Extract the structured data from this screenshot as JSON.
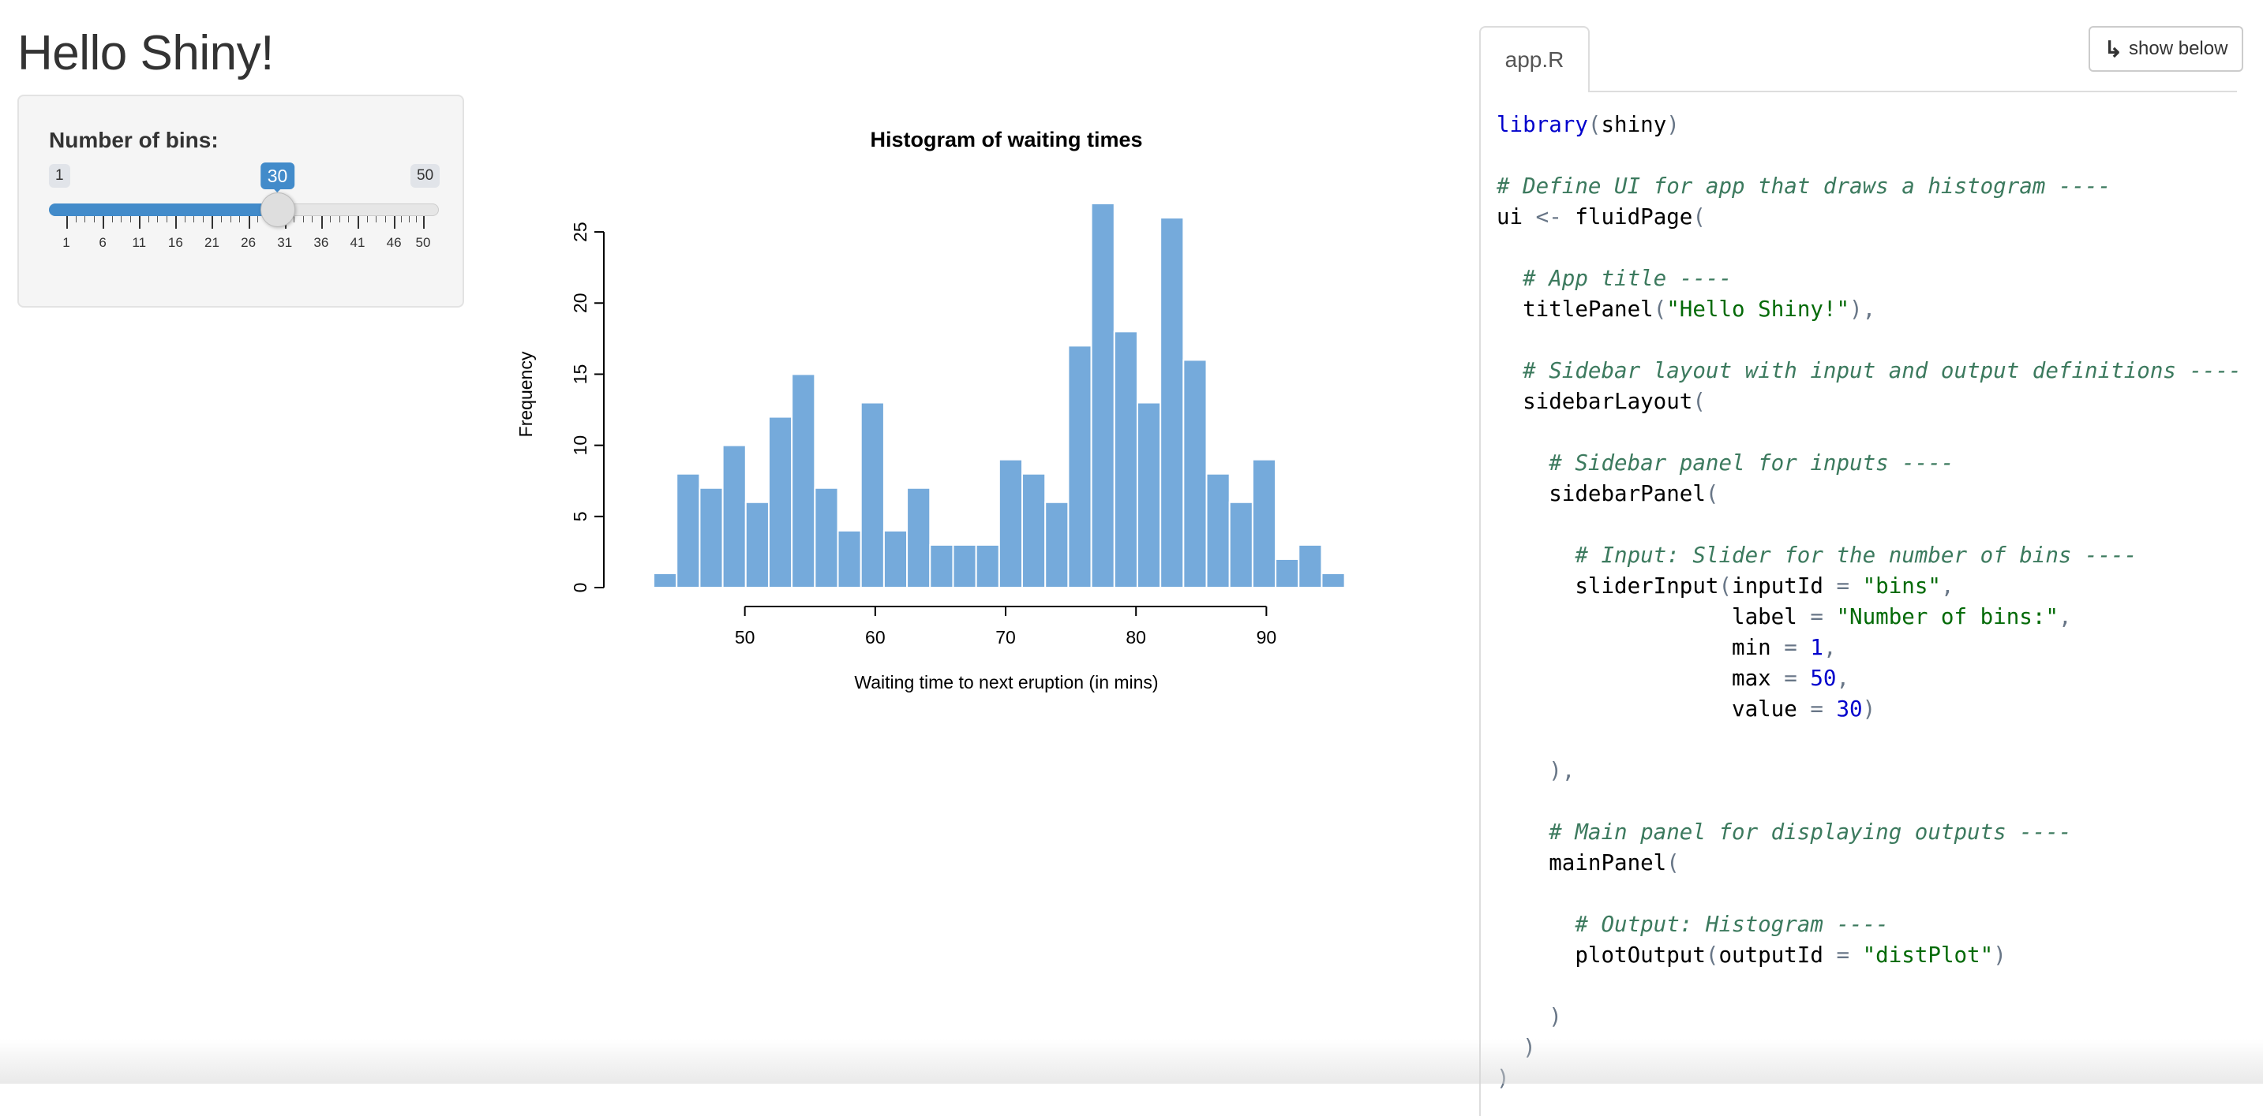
{
  "app": {
    "title": "Hello Shiny!",
    "slider": {
      "label": "Number of bins:",
      "min": 1,
      "max": 50,
      "value": 30,
      "min_label": "1",
      "max_label": "50",
      "value_label": "30",
      "grid_labels": [
        "1",
        "6",
        "11",
        "16",
        "21",
        "26",
        "31",
        "36",
        "41",
        "46",
        "50"
      ],
      "accent_color": "#428bca"
    }
  },
  "chart_data": {
    "type": "bar",
    "title": "Histogram of waiting times",
    "xlabel": "Waiting time to next eruption (in mins)",
    "ylabel": "Frequency",
    "bin_start": 43,
    "bin_width": 1.767,
    "values": [
      1,
      8,
      7,
      10,
      6,
      12,
      15,
      7,
      4,
      13,
      4,
      7,
      3,
      3,
      3,
      9,
      8,
      6,
      17,
      27,
      18,
      13,
      26,
      16,
      8,
      6,
      9,
      2,
      3,
      1
    ],
    "x_ticks": [
      50,
      60,
      70,
      80,
      90
    ],
    "y_ticks": [
      0,
      5,
      10,
      15,
      20,
      25
    ],
    "ylim": [
      0,
      27
    ],
    "grid": false,
    "bar_color": "#75aadb",
    "bar_border": "#ffffff"
  },
  "code_panel": {
    "tab_label": "app.R",
    "show_below_label": "show below",
    "show_below_icon": "down-right-arrow-icon",
    "lines": [
      [
        {
          "t": "library",
          "c": "kw"
        },
        {
          "t": "(shiny)",
          "c": "op-mix"
        }
      ],
      [],
      [
        {
          "t": "# Define UI for app that draws a histogram ----",
          "c": "cmt"
        }
      ],
      [
        {
          "t": "ui ",
          "c": ""
        },
        {
          "t": "<-",
          "c": "op"
        },
        {
          "t": " fluidPage",
          "c": ""
        },
        {
          "t": "(",
          "c": "op"
        }
      ],
      [],
      [
        {
          "t": "  # App title ----",
          "c": "cmt"
        }
      ],
      [
        {
          "t": "  titlePanel",
          "c": ""
        },
        {
          "t": "(",
          "c": "op"
        },
        {
          "t": "\"Hello Shiny!\"",
          "c": "str"
        },
        {
          "t": "),",
          "c": "op"
        }
      ],
      [],
      [
        {
          "t": "  # Sidebar layout with input and output definitions ----",
          "c": "cmt"
        }
      ],
      [
        {
          "t": "  sidebarLayout",
          "c": ""
        },
        {
          "t": "(",
          "c": "op"
        }
      ],
      [],
      [
        {
          "t": "    # Sidebar panel for inputs ----",
          "c": "cmt"
        }
      ],
      [
        {
          "t": "    sidebarPanel",
          "c": ""
        },
        {
          "t": "(",
          "c": "op"
        }
      ],
      [],
      [
        {
          "t": "      # Input: Slider for the number of bins ----",
          "c": "cmt"
        }
      ],
      [
        {
          "t": "      sliderInput",
          "c": ""
        },
        {
          "t": "(",
          "c": "op"
        },
        {
          "t": "inputId ",
          "c": ""
        },
        {
          "t": "=",
          "c": "op"
        },
        {
          "t": " ",
          "c": ""
        },
        {
          "t": "\"bins\"",
          "c": "str"
        },
        {
          "t": ",",
          "c": "op"
        }
      ],
      [
        {
          "t": "                  label ",
          "c": ""
        },
        {
          "t": "=",
          "c": "op"
        },
        {
          "t": " ",
          "c": ""
        },
        {
          "t": "\"Number of bins:\"",
          "c": "str"
        },
        {
          "t": ",",
          "c": "op"
        }
      ],
      [
        {
          "t": "                  min ",
          "c": ""
        },
        {
          "t": "=",
          "c": "op"
        },
        {
          "t": " ",
          "c": ""
        },
        {
          "t": "1",
          "c": "num"
        },
        {
          "t": ",",
          "c": "op"
        }
      ],
      [
        {
          "t": "                  max ",
          "c": ""
        },
        {
          "t": "=",
          "c": "op"
        },
        {
          "t": " ",
          "c": ""
        },
        {
          "t": "50",
          "c": "num"
        },
        {
          "t": ",",
          "c": "op"
        }
      ],
      [
        {
          "t": "                  value ",
          "c": ""
        },
        {
          "t": "=",
          "c": "op"
        },
        {
          "t": " ",
          "c": ""
        },
        {
          "t": "30",
          "c": "num"
        },
        {
          "t": ")",
          "c": "op"
        }
      ],
      [],
      [
        {
          "t": "    ),",
          "c": "op"
        }
      ],
      [],
      [
        {
          "t": "    # Main panel for displaying outputs ----",
          "c": "cmt"
        }
      ],
      [
        {
          "t": "    mainPanel",
          "c": ""
        },
        {
          "t": "(",
          "c": "op"
        }
      ],
      [],
      [
        {
          "t": "      # Output: Histogram ----",
          "c": "cmt"
        }
      ],
      [
        {
          "t": "      plotOutput",
          "c": ""
        },
        {
          "t": "(",
          "c": "op"
        },
        {
          "t": "outputId ",
          "c": ""
        },
        {
          "t": "=",
          "c": "op"
        },
        {
          "t": " ",
          "c": ""
        },
        {
          "t": "\"distPlot\"",
          "c": "str"
        },
        {
          "t": ")",
          "c": "op"
        }
      ],
      [],
      [
        {
          "t": "    )",
          "c": "op"
        }
      ],
      [
        {
          "t": "  )",
          "c": "op"
        }
      ],
      [
        {
          "t": ")",
          "c": "op"
        }
      ]
    ]
  }
}
